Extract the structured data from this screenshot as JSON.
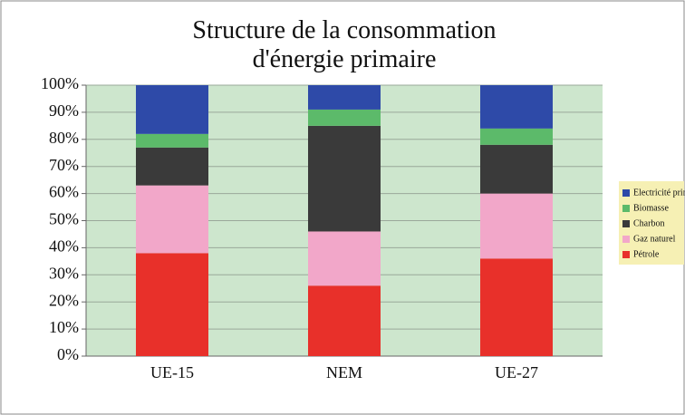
{
  "chart_data": {
    "type": "stacked_bar",
    "title": "Structure de la consommation d'énergie primaire",
    "categories": [
      "UE-15",
      "NEM",
      "UE-27"
    ],
    "series": [
      {
        "name": "Pétrole",
        "color": "#e8302a",
        "values": [
          38,
          26,
          36
        ]
      },
      {
        "name": "Gaz naturel",
        "color": "#f2a7c9",
        "values": [
          25,
          20,
          24
        ]
      },
      {
        "name": "Charbon",
        "color": "#3a3a3a",
        "values": [
          14,
          39,
          18
        ]
      },
      {
        "name": "Biomasse",
        "color": "#5cba6a",
        "values": [
          5,
          6,
          6
        ]
      },
      {
        "name": "Electricité primaire",
        "color": "#2e4aa8",
        "values": [
          18,
          9,
          16
        ]
      }
    ],
    "ylim": [
      0,
      100
    ],
    "yticks": [
      {
        "value": 0,
        "label": "0%"
      },
      {
        "value": 10,
        "label": "10%"
      },
      {
        "value": 20,
        "label": "20%"
      },
      {
        "value": 30,
        "label": "30%"
      },
      {
        "value": 40,
        "label": "40%"
      },
      {
        "value": 50,
        "label": "50%"
      },
      {
        "value": 60,
        "label": "60%"
      },
      {
        "value": 70,
        "label": "70%"
      },
      {
        "value": 80,
        "label": "80%"
      },
      {
        "value": 90,
        "label": "90%"
      },
      {
        "value": 100,
        "label": "100%"
      }
    ],
    "grid": true,
    "legend": "right",
    "plot_background": "#cde6cd"
  }
}
